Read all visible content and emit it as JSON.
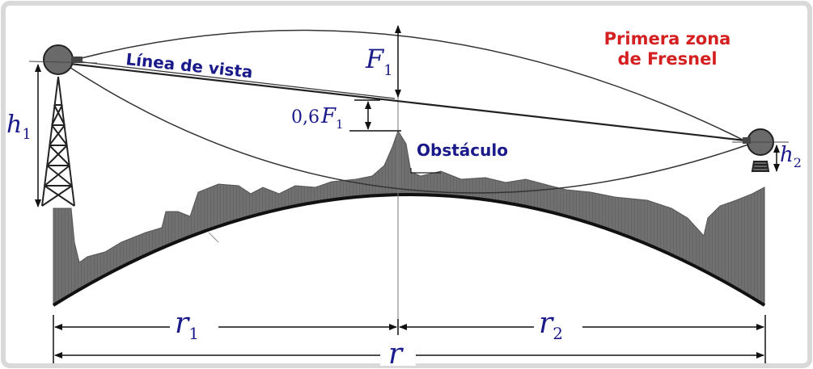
{
  "title": {
    "line1": "Primera zona",
    "line2": "de Fresnel"
  },
  "labels": {
    "line_of_sight": "Línea de vista",
    "obstacle": "Obstáculo",
    "clearance_prefix": "0,6",
    "f_symbol": "F",
    "f_subscript": "1",
    "h_symbol": "h",
    "h1_subscript": "1",
    "h2_subscript": "2",
    "r_symbol": "r",
    "r1_subscript": "1",
    "r2_subscript": "2"
  },
  "colors": {
    "label_blue": "#1a1a8a",
    "title_red": "#d42020",
    "terrain_gray": "#6f6f6f",
    "earth_curve": "#111111"
  }
}
